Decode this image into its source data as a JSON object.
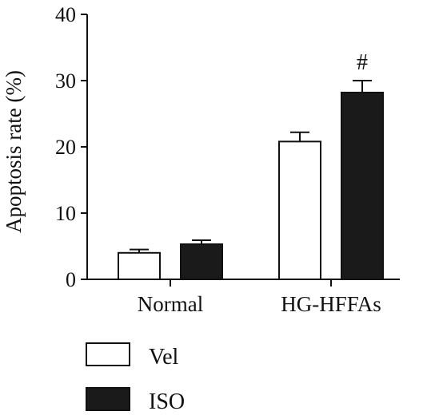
{
  "chart_data": {
    "type": "bar",
    "categories": [
      "Normal",
      "HG-HFFAs"
    ],
    "series": [
      {
        "name": "Vel",
        "values": [
          4.0,
          20.8
        ],
        "errors": [
          0.5,
          1.4
        ],
        "color": "#ffffff"
      },
      {
        "name": "ISO",
        "values": [
          5.3,
          28.2
        ],
        "errors": [
          0.6,
          1.8
        ],
        "color": "#1a1a1a"
      }
    ],
    "ylabel": "Apoptosis rate (%)",
    "xlabel": "",
    "ylim": [
      0,
      40
    ],
    "yticks": [
      0,
      10,
      20,
      30,
      40
    ],
    "grid": false,
    "legend_placement": "bottom-left",
    "annotations": [
      {
        "text": "#",
        "category": "HG-HFFAs",
        "series": "ISO"
      }
    ]
  }
}
